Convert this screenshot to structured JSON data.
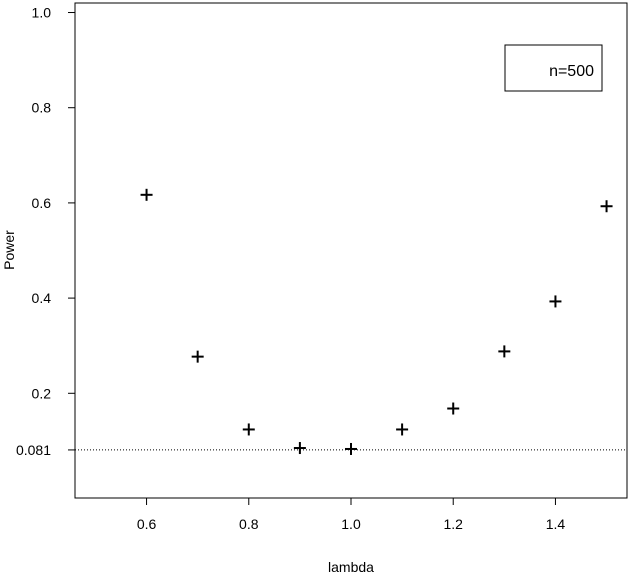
{
  "chart_data": {
    "type": "scatter",
    "title": "",
    "xlabel": "lambda",
    "ylabel": "Power",
    "xlim": [
      0.46,
      1.54
    ],
    "ylim": [
      -0.02,
      1.02
    ],
    "x_ticks": [
      "0.6",
      "0.8",
      "1.0",
      "1.2",
      "1.4"
    ],
    "y_ticks": [
      "0.081",
      "0.2",
      "0.4",
      "0.6",
      "0.8",
      "1.0"
    ],
    "reference_line": {
      "y": 0.081,
      "style": "dotted"
    },
    "legend": {
      "text": "n=500",
      "position": "top-right"
    },
    "marker": "plus",
    "points": [
      {
        "x": 0.6,
        "y": 0.617
      },
      {
        "x": 0.7,
        "y": 0.277
      },
      {
        "x": 0.8,
        "y": 0.124
      },
      {
        "x": 0.9,
        "y": 0.085
      },
      {
        "x": 1.0,
        "y": 0.083
      },
      {
        "x": 1.1,
        "y": 0.124
      },
      {
        "x": 1.2,
        "y": 0.168
      },
      {
        "x": 1.3,
        "y": 0.288
      },
      {
        "x": 1.4,
        "y": 0.393
      },
      {
        "x": 1.5,
        "y": 0.593
      }
    ],
    "grid": false,
    "colors": {
      "marker": "#000000",
      "axis": "#000000"
    }
  }
}
